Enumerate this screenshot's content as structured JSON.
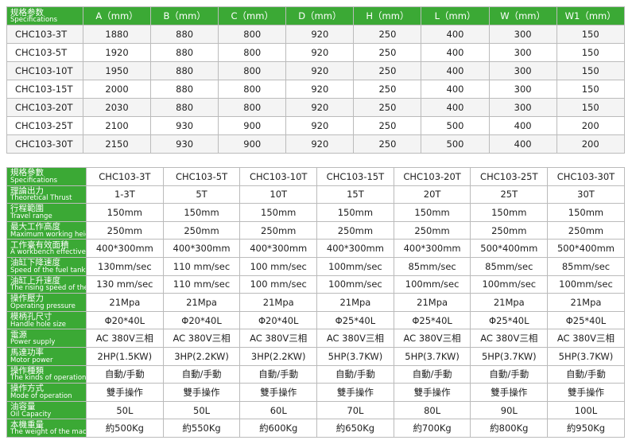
{
  "dimension_table": {
    "corner": {
      "zh": "规格参数",
      "en": "Specifications"
    },
    "columns": [
      "A（mm）",
      "B（mm）",
      "C（mm）",
      "D（mm）",
      "H（mm）",
      "L（mm）",
      "W（mm）",
      "W1（mm）"
    ],
    "rows": [
      [
        "CHC103-3T",
        "1880",
        "880",
        "800",
        "920",
        "250",
        "400",
        "300",
        "150"
      ],
      [
        "CHC103-5T",
        "1920",
        "880",
        "800",
        "920",
        "250",
        "400",
        "300",
        "150"
      ],
      [
        "CHC103-10T",
        "1950",
        "880",
        "800",
        "920",
        "250",
        "400",
        "300",
        "150"
      ],
      [
        "CHC103-15T",
        "2000",
        "880",
        "800",
        "920",
        "250",
        "400",
        "300",
        "150"
      ],
      [
        "CHC103-20T",
        "2030",
        "880",
        "800",
        "920",
        "250",
        "400",
        "300",
        "150"
      ],
      [
        "CHC103-25T",
        "2100",
        "930",
        "900",
        "920",
        "250",
        "500",
        "400",
        "200"
      ],
      [
        "CHC103-30T",
        "2150",
        "930",
        "900",
        "920",
        "250",
        "500",
        "400",
        "200"
      ]
    ]
  },
  "spec_table": {
    "corner": {
      "zh": "規格參數",
      "en": "Specifications"
    },
    "columns": [
      "CHC103-3T",
      "CHC103-5T",
      "CHC103-10T",
      "CHC103-15T",
      "CHC103-20T",
      "CHC103-25T",
      "CHC103-30T"
    ],
    "rows": [
      {
        "zh": "理論出力",
        "en": "Theoretical Thrust",
        "cells": [
          "1-3T",
          "5T",
          "10T",
          "15T",
          "20T",
          "25T",
          "30T"
        ]
      },
      {
        "zh": "行程範圍",
        "en": "Travel range",
        "cells": [
          "150mm",
          "150mm",
          "150mm",
          "150mm",
          "150mm",
          "150mm",
          "150mm"
        ]
      },
      {
        "zh": "最大工作高度",
        "en": "Maximum working height",
        "cells": [
          "250mm",
          "250mm",
          "250mm",
          "250mm",
          "250mm",
          "250mm",
          "250mm"
        ]
      },
      {
        "zh": "工作臺有效面積",
        "en": "A workbench effective area",
        "cells": [
          "400*300mm",
          "400*300mm",
          "400*300mm",
          "400*300mm",
          "400*300mm",
          "500*400mm",
          "500*400mm"
        ]
      },
      {
        "zh": "油缸下降速度",
        "en": "Speed of the fuel tank under pressure",
        "cells": [
          "130mm/sec",
          "110 mm/sec",
          "100 mm/sec",
          "100mm/sec",
          "85mm/sec",
          "85mm/sec",
          "85mm/sec"
        ]
      },
      {
        "zh": "油缸上升速度",
        "en": "The rising speed of the cylinder",
        "cells": [
          "130 mm/sec",
          "110 mm/sec",
          "100 mm/sec",
          "100mm/sec",
          "100mm/sec",
          "100mm/sec",
          "100mm/sec"
        ]
      },
      {
        "zh": "操作壓力",
        "en": "Operating pressure",
        "cells": [
          "21Mpa",
          "21Mpa",
          "21Mpa",
          "21Mpa",
          "21Mpa",
          "21Mpa",
          "21Mpa"
        ]
      },
      {
        "zh": "模柄孔尺寸",
        "en": "Handle hole size",
        "cells": [
          "Φ20*40L",
          "Φ20*40L",
          "Φ20*40L",
          "Φ25*40L",
          "Φ25*40L",
          "Φ25*40L",
          "Φ25*40L"
        ]
      },
      {
        "zh": "電源",
        "en": "Power supply",
        "cells": [
          "AC 380V三相",
          "AC 380V三相",
          "AC 380V三相",
          "AC 380V三相",
          "AC 380V三相",
          "AC 380V三相",
          "AC 380V三相"
        ]
      },
      {
        "zh": "馬達功率",
        "en": "Motor power",
        "cells": [
          "2HP(1.5KW)",
          "3HP(2.2KW)",
          "3HP(2.2KW)",
          "5HP(3.7KW)",
          "5HP(3.7KW)",
          "5HP(3.7KW)",
          "5HP(3.7KW)"
        ]
      },
      {
        "zh": "操作種類",
        "en": "The kinds of operations",
        "cells": [
          "自動/手動",
          "自動/手動",
          "自動/手動",
          "自動/手動",
          "自動/手動",
          "自動/手動",
          "自動/手動"
        ]
      },
      {
        "zh": "操作方式",
        "en": "Mode of operation",
        "cells": [
          "雙手操作",
          "雙手操作",
          "雙手操作",
          "雙手操作",
          "雙手操作",
          "雙手操作",
          "雙手操作"
        ]
      },
      {
        "zh": "油容量",
        "en": "Oil Capacity",
        "cells": [
          "50L",
          "50L",
          "60L",
          "70L",
          "80L",
          "90L",
          "100L"
        ]
      },
      {
        "zh": "本機重量",
        "en": "The weight of the machine",
        "cells": [
          "約500Kg",
          "約550Kg",
          "約600Kg",
          "約650Kg",
          "約700Kg",
          "約800Kg",
          "約950Kg"
        ]
      }
    ]
  }
}
